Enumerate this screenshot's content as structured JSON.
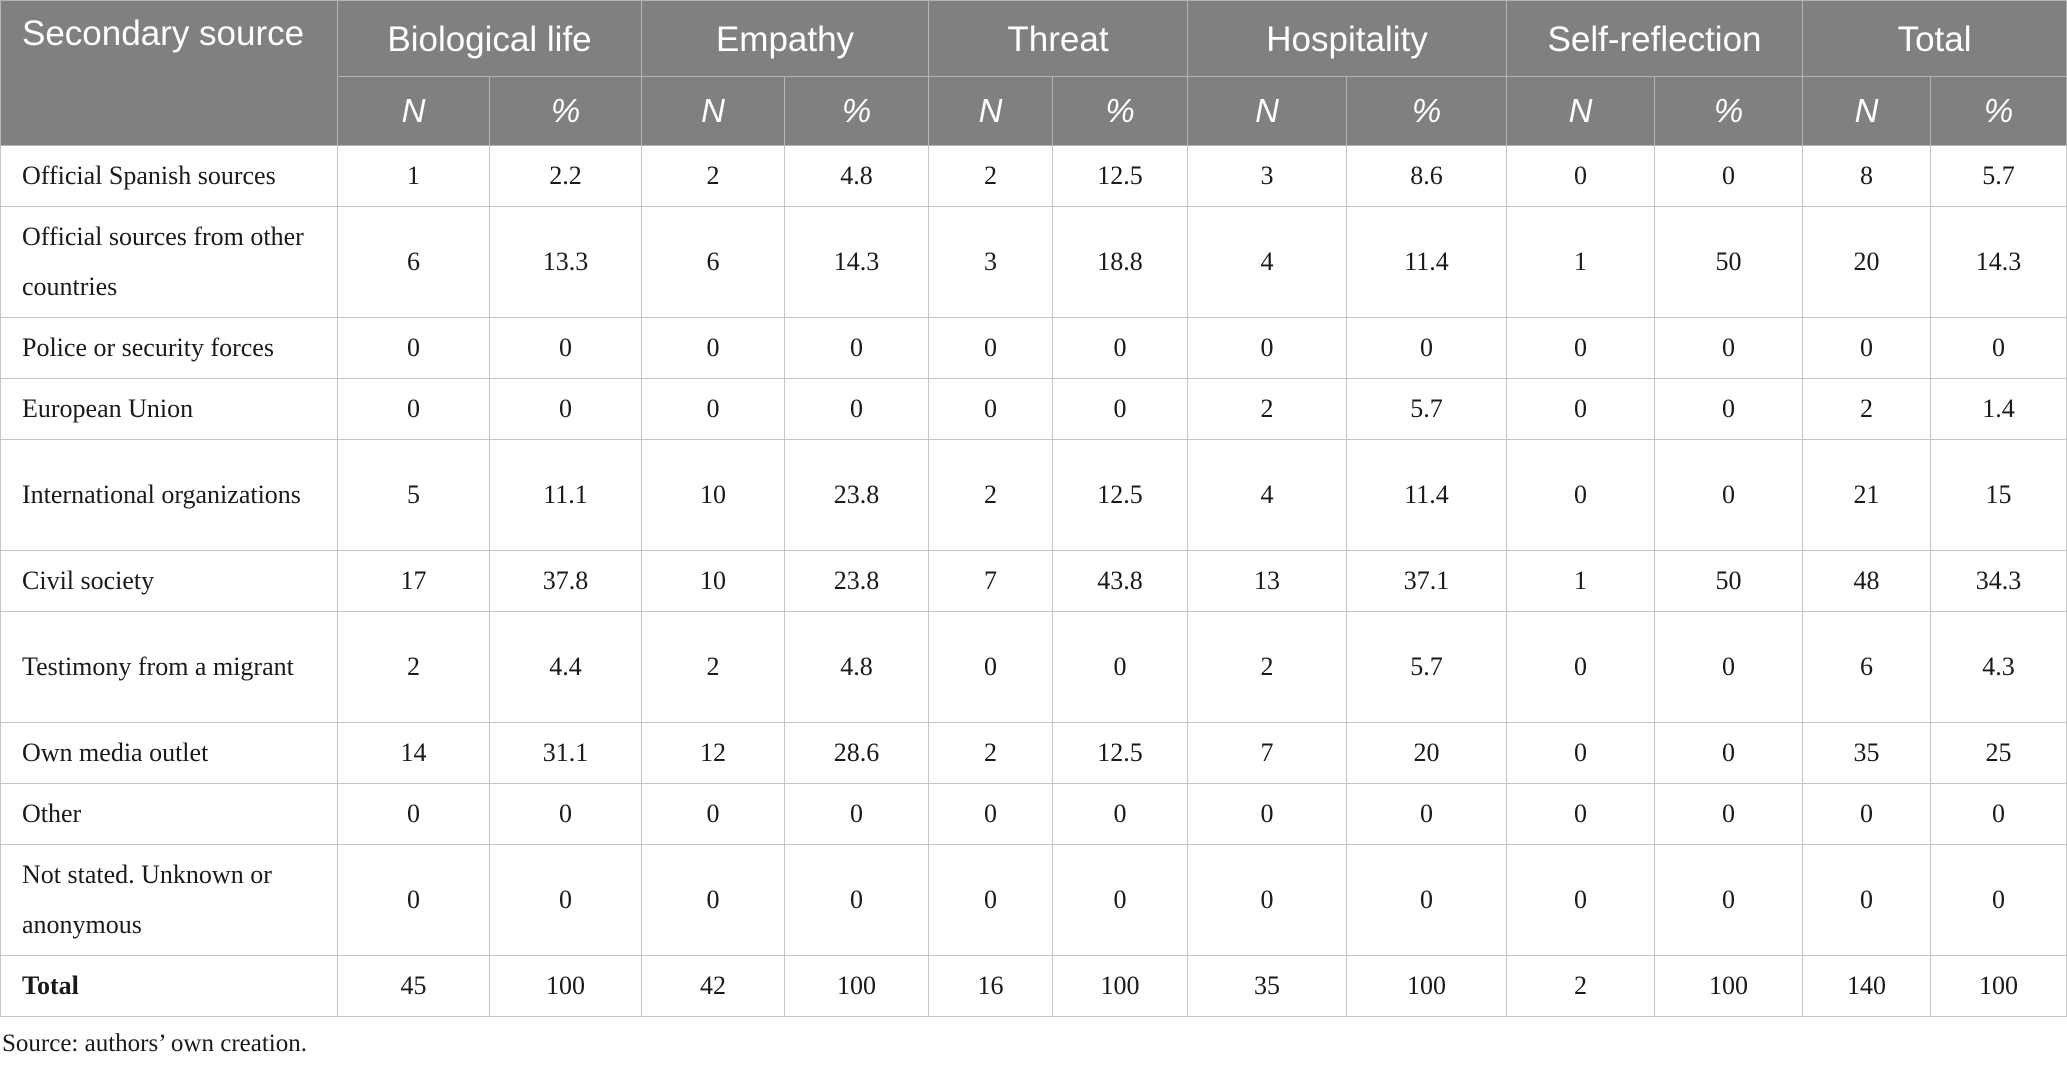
{
  "table": {
    "corner_header": "Secondary source",
    "groups": [
      "Biological life",
      "Empathy",
      "Threat",
      "Hospitality",
      "Self-reflection",
      "Total"
    ],
    "subheaders": [
      "N",
      "%",
      "N",
      "%",
      "N",
      "%",
      "N",
      "%",
      "N",
      "%",
      "N",
      "%"
    ],
    "rows": [
      {
        "label": "Official Spanish sources",
        "cells": [
          "1",
          "2.2",
          "2",
          "4.8",
          "2",
          "12.5",
          "3",
          "8.6",
          "0",
          "0",
          "8",
          "5.7"
        ]
      },
      {
        "label": "Official sources from other countries",
        "cells": [
          "6",
          "13.3",
          "6",
          "14.3",
          "3",
          "18.8",
          "4",
          "11.4",
          "1",
          "50",
          "20",
          "14.3"
        ]
      },
      {
        "label": "Police or security forces",
        "cells": [
          "0",
          "0",
          "0",
          "0",
          "0",
          "0",
          "0",
          "0",
          "0",
          "0",
          "0",
          "0"
        ]
      },
      {
        "label": "European Union",
        "cells": [
          "0",
          "0",
          "0",
          "0",
          "0",
          "0",
          "2",
          "5.7",
          "0",
          "0",
          "2",
          "1.4"
        ]
      },
      {
        "label": "International organizations",
        "cells": [
          "5",
          "11.1",
          "10",
          "23.8",
          "2",
          "12.5",
          "4",
          "11.4",
          "0",
          "0",
          "21",
          "15"
        ]
      },
      {
        "label": "Civil society",
        "cells": [
          "17",
          "37.8",
          "10",
          "23.8",
          "7",
          "43.8",
          "13",
          "37.1",
          "1",
          "50",
          "48",
          "34.3"
        ]
      },
      {
        "label": "Testimony from a migrant",
        "cells": [
          "2",
          "4.4",
          "2",
          "4.8",
          "0",
          "0",
          "2",
          "5.7",
          "0",
          "0",
          "6",
          "4.3"
        ]
      },
      {
        "label": "Own media outlet",
        "cells": [
          "14",
          "31.1",
          "12",
          "28.6",
          "2",
          "12.5",
          "7",
          "20",
          "0",
          "0",
          "35",
          "25"
        ]
      },
      {
        "label": "Other",
        "cells": [
          "0",
          "0",
          "0",
          "0",
          "0",
          "0",
          "0",
          "0",
          "0",
          "0",
          "0",
          "0"
        ]
      },
      {
        "label": "Not stated. Unknown or anonymous",
        "cells": [
          "0",
          "0",
          "0",
          "0",
          "0",
          "0",
          "0",
          "0",
          "0",
          "0",
          "0",
          "0"
        ]
      },
      {
        "label": "Total",
        "cells": [
          "45",
          "100",
          "42",
          "100",
          "16",
          "100",
          "35",
          "100",
          "2",
          "100",
          "140",
          "100"
        ]
      }
    ]
  },
  "caption": "Source: authors’ own creation."
}
